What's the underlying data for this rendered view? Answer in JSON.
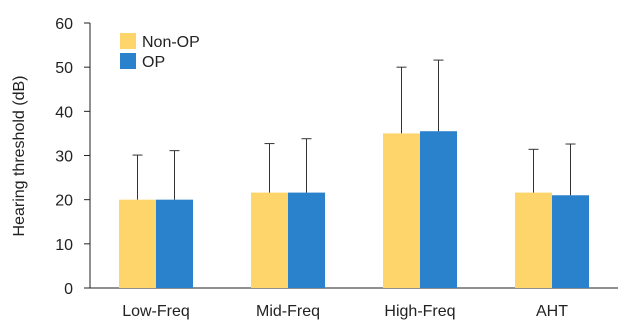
{
  "chart_data": {
    "type": "bar",
    "title": "",
    "xlabel": "",
    "ylabel": "Hearing threshold (dB)",
    "ylim": [
      0,
      60
    ],
    "yticks": [
      0,
      10,
      20,
      30,
      40,
      50,
      60
    ],
    "categories": [
      "Low-Freq",
      "Mid-Freq",
      "High-Freq",
      "AHT"
    ],
    "series": [
      {
        "name": "Non-OP",
        "color": "#FDD56A",
        "values": [
          20.0,
          21.6,
          35.0,
          21.6
        ],
        "error_upper": [
          10.1,
          11.1,
          15.0,
          9.8
        ]
      },
      {
        "name": "OP",
        "color": "#2A82CC",
        "values": [
          20.0,
          21.6,
          35.5,
          21.0
        ],
        "error_upper": [
          11.1,
          12.2,
          16.1,
          11.6
        ]
      }
    ],
    "legend_position": "top-left",
    "grid": false
  }
}
